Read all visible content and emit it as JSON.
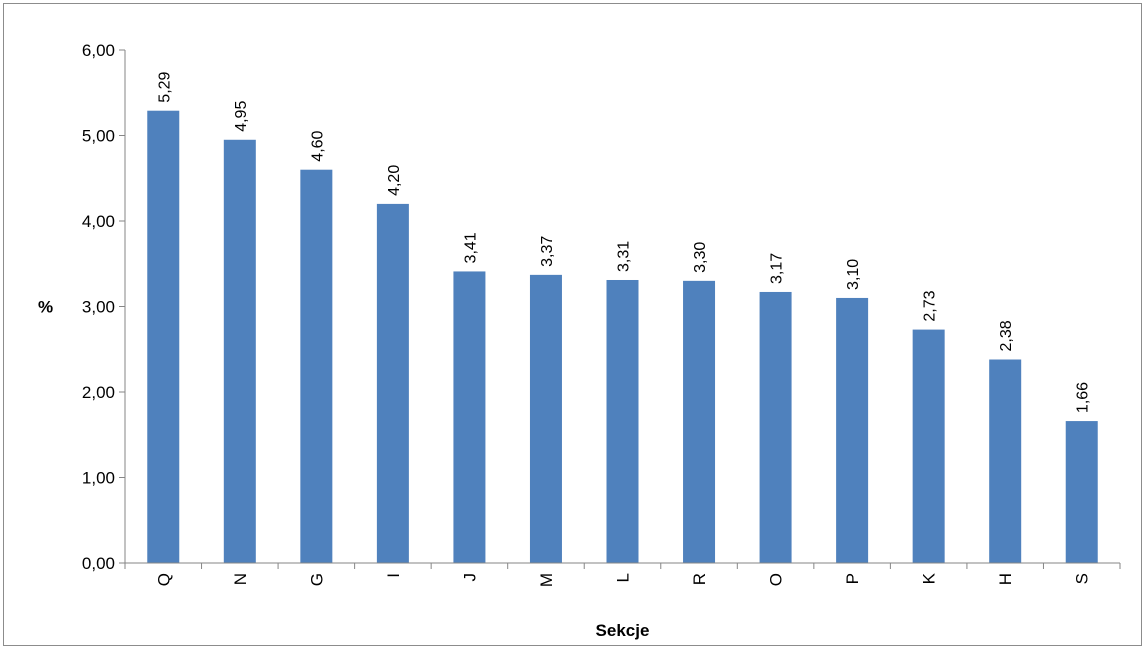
{
  "chart_data": {
    "type": "bar",
    "categories": [
      "Q",
      "N",
      "G",
      "I",
      "J",
      "M",
      "L",
      "R",
      "O",
      "P",
      "K",
      "H",
      "S"
    ],
    "values": [
      5.29,
      4.95,
      4.6,
      4.2,
      3.41,
      3.37,
      3.31,
      3.3,
      3.17,
      3.1,
      2.73,
      2.38,
      1.66
    ],
    "value_labels": [
      "5,29",
      "4,95",
      "4,60",
      "4,20",
      "3,41",
      "3,37",
      "3,31",
      "3,30",
      "3,17",
      "3,10",
      "2,73",
      "2,38",
      "1,66"
    ],
    "title": "",
    "xlabel": "Sekcje",
    "ylabel": "%",
    "ylim": [
      0,
      6
    ],
    "y_ticks": [
      0,
      1,
      2,
      3,
      4,
      5,
      6
    ],
    "y_tick_labels": [
      "0,00",
      "1,00",
      "2,00",
      "3,00",
      "4,00",
      "5,00",
      "6,00"
    ],
    "grid": false,
    "legend": "none",
    "bar_color": "#4f81bd"
  }
}
